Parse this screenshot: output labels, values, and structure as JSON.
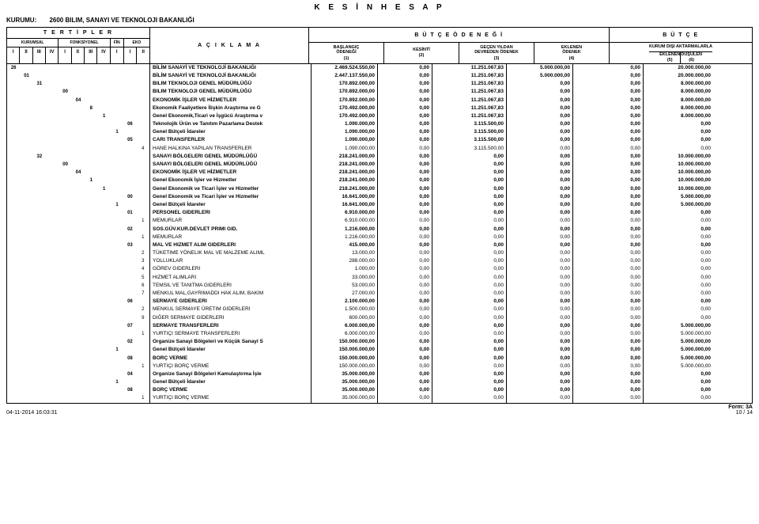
{
  "title": "K E S İ N   H E S A P",
  "kurumu_label": "KURUMU:",
  "kurumu_value": "2600  BILIM, SANAYI VE TEKNOLOJI BAKANLIĞI",
  "tertipler_title": "T E R T İ P L E R",
  "aciklama_title": "A Ç I K L A M A",
  "butce_odenegi_title": "B Ü T Ç E   Ö D E N E Ğ İ",
  "butce_title": "B Ü T Ç E",
  "tert_groups": [
    {
      "title": "KURUMSAL",
      "subs": [
        "I",
        "II",
        "III",
        "IV"
      ]
    },
    {
      "title": "FONKSİYONEL",
      "subs": [
        "I",
        "II",
        "III",
        "IV"
      ]
    },
    {
      "title": "FİN",
      "subs": [
        "I"
      ]
    },
    {
      "title": "EKO",
      "subs": [
        "I",
        "II"
      ]
    }
  ],
  "right_cols": [
    {
      "l1": "BAŞLANGIÇ",
      "l2": "ÖDENEĞİ",
      "n": "(1)"
    },
    {
      "l1": "KESİNTİ",
      "n": "(2)"
    },
    {
      "l1": "GEÇEN YILDAN",
      "l2": "DEVREDEN ÖDENEK",
      "n": "(3)"
    },
    {
      "l1": "EKLENEN",
      "l2": "ÖDENEK",
      "n": "(4)"
    }
  ],
  "kurum_disi": "KURUM DIŞI  AKTARMALARLA",
  "eklenen_col": {
    "l": "EKLENEN",
    "n": "(5)"
  },
  "dusulen_col": {
    "l": "DÜŞÜLEN",
    "n": "(6)"
  },
  "rows": [
    {
      "c": [
        "26",
        "",
        "",
        "",
        "",
        "",
        "",
        "",
        "",
        "",
        ""
      ],
      "b": 1,
      "d": "BİLİM SANAYİ VE TEKNOLOJİ BAKANLIĞI",
      "v": [
        "2.469.524.550,00",
        "0,00",
        "11.251.067,83",
        "5.000.000,00",
        "0,00",
        "20.000.000,00"
      ]
    },
    {
      "c": [
        "",
        "01",
        "",
        "",
        "",
        "",
        "",
        "",
        "",
        "",
        ""
      ],
      "b": 1,
      "d": "BİLİM SANAYİ VE TEKNOLOJİ BAKANLIĞI",
      "v": [
        "2.447.137.550,00",
        "0,00",
        "11.251.067,83",
        "5.000.000,00",
        "0,00",
        "20.000.000,00"
      ]
    },
    {
      "c": [
        "",
        "",
        "31",
        "",
        "",
        "",
        "",
        "",
        "",
        "",
        ""
      ],
      "b": 1,
      "d": "BILIM TEKNOLOJI GENEL MÜDÜRLÜĞÜ",
      "v": [
        "170.892.000,00",
        "0,00",
        "11.251.067,83",
        "0,00",
        "0,00",
        "8.000.000,00"
      ]
    },
    {
      "c": [
        "",
        "",
        "",
        "",
        "00",
        "",
        "",
        "",
        "",
        "",
        ""
      ],
      "b": 1,
      "d": "BILIM TEKNOLOJI GENEL MÜDÜRLÜĞÜ",
      "v": [
        "170.892.000,00",
        "0,00",
        "11.251.067,83",
        "0,00",
        "0,00",
        "8.000.000,00"
      ]
    },
    {
      "c": [
        "",
        "",
        "",
        "",
        "",
        "04",
        "",
        "",
        "",
        "",
        ""
      ],
      "b": 1,
      "d": "EKONOMİK İŞLER VE HİZMETLER",
      "v": [
        "170.892.000,00",
        "0,00",
        "11.251.067,83",
        "0,00",
        "0,00",
        "8.000.000,00"
      ]
    },
    {
      "c": [
        "",
        "",
        "",
        "",
        "",
        "",
        "8",
        "",
        "",
        "",
        ""
      ],
      "b": 1,
      "d": "Ekonomik Faaliyetlere İlişkin Araştırma ve G",
      "v": [
        "170.492.000,00",
        "0,00",
        "11.251.067,83",
        "0,00",
        "0,00",
        "8.000.000,00"
      ]
    },
    {
      "c": [
        "",
        "",
        "",
        "",
        "",
        "",
        "",
        "1",
        "",
        "",
        ""
      ],
      "b": 1,
      "d": "Genel Ekonomik,Ticari ve İşgücü Araştırma v",
      "v": [
        "170.492.000,00",
        "0,00",
        "11.251.067,83",
        "0,00",
        "0,00",
        "8.000.000,00"
      ]
    },
    {
      "c": [
        "",
        "",
        "",
        "",
        "",
        "",
        "",
        "",
        "",
        "06",
        ""
      ],
      "b": 1,
      "d": "Teknolojik Ürün ve Tanıtım Pazarlama Destek",
      "v": [
        "1.090.000,00",
        "0,00",
        "3.115.500,00",
        "0,00",
        "0,00",
        "0,00"
      ]
    },
    {
      "c": [
        "",
        "",
        "",
        "",
        "",
        "",
        "",
        "",
        "1",
        "",
        ""
      ],
      "b": 1,
      "d": "Genel Bütçeli İdareler",
      "v": [
        "1.090.000,00",
        "0,00",
        "3.115.500,00",
        "0,00",
        "0,00",
        "0,00"
      ]
    },
    {
      "c": [
        "",
        "",
        "",
        "",
        "",
        "",
        "",
        "",
        "",
        "05",
        ""
      ],
      "b": 1,
      "d": "CARI TRANSFERLER",
      "v": [
        "1.090.000,00",
        "0,00",
        "3.115.500,00",
        "0,00",
        "0,00",
        "0,00"
      ]
    },
    {
      "c": [
        "",
        "",
        "",
        "",
        "",
        "",
        "",
        "",
        "",
        "",
        "4"
      ],
      "b": 0,
      "d": "HANE HALKINA YAPILAN TRANSFERLER",
      "v": [
        "1.090.000,00",
        "0,00",
        "3.115.500,00",
        "0,00",
        "0,00",
        "0,00"
      ]
    },
    {
      "c": [
        "",
        "",
        "32",
        "",
        "",
        "",
        "",
        "",
        "",
        "",
        ""
      ],
      "b": 1,
      "d": "SANAYI BÖLGELERI GENEL MÜDÜRLÜĞÜ",
      "v": [
        "218.241.000,00",
        "0,00",
        "0,00",
        "0,00",
        "0,00",
        "10.000.000,00"
      ]
    },
    {
      "c": [
        "",
        "",
        "",
        "",
        "00",
        "",
        "",
        "",
        "",
        "",
        ""
      ],
      "b": 1,
      "d": "SANAYI BÖLGELERI GENEL MÜDÜRLÜĞÜ",
      "v": [
        "218.241.000,00",
        "0,00",
        "0,00",
        "0,00",
        "0,00",
        "10.000.000,00"
      ]
    },
    {
      "c": [
        "",
        "",
        "",
        "",
        "",
        "04",
        "",
        "",
        "",
        "",
        ""
      ],
      "b": 1,
      "d": "EKONOMİK İŞLER VE HİZMETLER",
      "v": [
        "218.241.000,00",
        "0,00",
        "0,00",
        "0,00",
        "0,00",
        "10.000.000,00"
      ]
    },
    {
      "c": [
        "",
        "",
        "",
        "",
        "",
        "",
        "1",
        "",
        "",
        "",
        ""
      ],
      "b": 1,
      "d": "Genel Ekonomik İşler ve Hizmetler",
      "v": [
        "218.241.000,00",
        "0,00",
        "0,00",
        "0,00",
        "0,00",
        "10.000.000,00"
      ]
    },
    {
      "c": [
        "",
        "",
        "",
        "",
        "",
        "",
        "",
        "1",
        "",
        "",
        ""
      ],
      "b": 1,
      "d": "Genel Ekonomik ve Ticari  İşler ve Hizmetler",
      "v": [
        "218.241.000,00",
        "0,00",
        "0,00",
        "0,00",
        "0,00",
        "10.000.000,00"
      ]
    },
    {
      "c": [
        "",
        "",
        "",
        "",
        "",
        "",
        "",
        "",
        "",
        "00",
        ""
      ],
      "b": 1,
      "d": "Genel Ekonomik ve Ticari  İşler ve Hizmetler",
      "v": [
        "16.641.000,00",
        "0,00",
        "0,00",
        "0,00",
        "0,00",
        "5.000.000,00"
      ]
    },
    {
      "c": [
        "",
        "",
        "",
        "",
        "",
        "",
        "",
        "",
        "1",
        "",
        ""
      ],
      "b": 1,
      "d": "Genel Bütçeli İdareler",
      "v": [
        "16.641.000,00",
        "0,00",
        "0,00",
        "0,00",
        "0,00",
        "5.000.000,00"
      ]
    },
    {
      "c": [
        "",
        "",
        "",
        "",
        "",
        "",
        "",
        "",
        "",
        "01",
        ""
      ],
      "b": 1,
      "d": "PERSONEL GIDERLERI",
      "v": [
        "6.910.000,00",
        "0,00",
        "0,00",
        "0,00",
        "0,00",
        "0,00"
      ]
    },
    {
      "c": [
        "",
        "",
        "",
        "",
        "",
        "",
        "",
        "",
        "",
        "",
        "1"
      ],
      "b": 0,
      "d": "MEMURLAR",
      "v": [
        "6.910.000,00",
        "0,00",
        "0,00",
        "0,00",
        "0,00",
        "0,00"
      ]
    },
    {
      "c": [
        "",
        "",
        "",
        "",
        "",
        "",
        "",
        "",
        "",
        "02",
        ""
      ],
      "b": 1,
      "d": "SOS.GÜV.KUR.DEVLET PRIMI GID.",
      "v": [
        "1.216.000,00",
        "0,00",
        "0,00",
        "0,00",
        "0,00",
        "0,00"
      ]
    },
    {
      "c": [
        "",
        "",
        "",
        "",
        "",
        "",
        "",
        "",
        "",
        "",
        "1"
      ],
      "b": 0,
      "d": "MEMURLAR",
      "v": [
        "1.216.000,00",
        "0,00",
        "0,00",
        "0,00",
        "0,00",
        "0,00"
      ]
    },
    {
      "c": [
        "",
        "",
        "",
        "",
        "",
        "",
        "",
        "",
        "",
        "03",
        ""
      ],
      "b": 1,
      "d": "MAL VE HIZMET ALIM GIDERLERI",
      "v": [
        "415.000,00",
        "0,00",
        "0,00",
        "0,00",
        "0,00",
        "0,00"
      ]
    },
    {
      "c": [
        "",
        "",
        "",
        "",
        "",
        "",
        "",
        "",
        "",
        "",
        "2"
      ],
      "b": 0,
      "d": "TÜKETIME YÖNELIK MAL VE MALZEME ALIML",
      "v": [
        "13.000,00",
        "0,00",
        "0,00",
        "0,00",
        "0,00",
        "0,00"
      ]
    },
    {
      "c": [
        "",
        "",
        "",
        "",
        "",
        "",
        "",
        "",
        "",
        "",
        "3"
      ],
      "b": 0,
      "d": "YOLLUKLAR",
      "v": [
        "288.000,00",
        "0,00",
        "0,00",
        "0,00",
        "0,00",
        "0,00"
      ]
    },
    {
      "c": [
        "",
        "",
        "",
        "",
        "",
        "",
        "",
        "",
        "",
        "",
        "4"
      ],
      "b": 0,
      "d": "GÖREV GIDERLERI",
      "v": [
        "1.000,00",
        "0,00",
        "0,00",
        "0,00",
        "0,00",
        "0,00"
      ]
    },
    {
      "c": [
        "",
        "",
        "",
        "",
        "",
        "",
        "",
        "",
        "",
        "",
        "5"
      ],
      "b": 0,
      "d": "HIZMET ALIMLARI",
      "v": [
        "33.000,00",
        "0,00",
        "0,00",
        "0,00",
        "0,00",
        "0,00"
      ]
    },
    {
      "c": [
        "",
        "",
        "",
        "",
        "",
        "",
        "",
        "",
        "",
        "",
        "6"
      ],
      "b": 0,
      "d": "TEMSIL VE TANITMA GIDERLERI",
      "v": [
        "53.000,00",
        "0,00",
        "0,00",
        "0,00",
        "0,00",
        "0,00"
      ]
    },
    {
      "c": [
        "",
        "",
        "",
        "",
        "",
        "",
        "",
        "",
        "",
        "",
        "7"
      ],
      "b": 0,
      "d": "MENKUL MAL,GAYRIMADDI HAK ALIM, BAKIM",
      "v": [
        "27.000,00",
        "0,00",
        "0,00",
        "0,00",
        "0,00",
        "0,00"
      ]
    },
    {
      "c": [
        "",
        "",
        "",
        "",
        "",
        "",
        "",
        "",
        "",
        "06",
        ""
      ],
      "b": 1,
      "d": "SERMAYE GIDERLERI",
      "v": [
        "2.100.000,00",
        "0,00",
        "0,00",
        "0,00",
        "0,00",
        "0,00"
      ]
    },
    {
      "c": [
        "",
        "",
        "",
        "",
        "",
        "",
        "",
        "",
        "",
        "",
        "2"
      ],
      "b": 0,
      "d": "MENKUL SERMAYE ÜRETIM GIDERLERI",
      "v": [
        "1.500.000,00",
        "0,00",
        "0,00",
        "0,00",
        "0,00",
        "0,00"
      ]
    },
    {
      "c": [
        "",
        "",
        "",
        "",
        "",
        "",
        "",
        "",
        "",
        "",
        "9"
      ],
      "b": 0,
      "d": "DIĞER SERMAYE GIDERLERI",
      "v": [
        "600.000,00",
        "0,00",
        "0,00",
        "0,00",
        "0,00",
        "0,00"
      ]
    },
    {
      "c": [
        "",
        "",
        "",
        "",
        "",
        "",
        "",
        "",
        "",
        "07",
        ""
      ],
      "b": 1,
      "d": "SERMAYE TRANSFERLERI",
      "v": [
        "6.000.000,00",
        "0,00",
        "0,00",
        "0,00",
        "0,00",
        "5.000.000,00"
      ]
    },
    {
      "c": [
        "",
        "",
        "",
        "",
        "",
        "",
        "",
        "",
        "",
        "",
        "1"
      ],
      "b": 0,
      "d": "YURTIÇI SERMAYE TRANSFERLERI",
      "v": [
        "6.000.000,00",
        "0,00",
        "0,00",
        "0,00",
        "0,00",
        "5.000.000,00"
      ]
    },
    {
      "c": [
        "",
        "",
        "",
        "",
        "",
        "",
        "",
        "",
        "",
        "02",
        ""
      ],
      "b": 1,
      "d": "Organize Sanayi Bölgeleri  ve Küçük Sanayi S",
      "v": [
        "150.000.000,00",
        "0,00",
        "0,00",
        "0,00",
        "0,00",
        "5.000.000,00"
      ]
    },
    {
      "c": [
        "",
        "",
        "",
        "",
        "",
        "",
        "",
        "",
        "1",
        "",
        ""
      ],
      "b": 1,
      "d": "Genel Bütçeli İdareler",
      "v": [
        "150.000.000,00",
        "0,00",
        "0,00",
        "0,00",
        "0,00",
        "5.000.000,00"
      ]
    },
    {
      "c": [
        "",
        "",
        "",
        "",
        "",
        "",
        "",
        "",
        "",
        "08",
        ""
      ],
      "b": 1,
      "d": "BORÇ VERME",
      "v": [
        "150.000.000,00",
        "0,00",
        "0,00",
        "0,00",
        "0,00",
        "5.000.000,00"
      ]
    },
    {
      "c": [
        "",
        "",
        "",
        "",
        "",
        "",
        "",
        "",
        "",
        "",
        "1"
      ],
      "b": 0,
      "d": "YURTIÇI BORÇ VERME",
      "v": [
        "150.000.000,00",
        "0,00",
        "0,00",
        "0,00",
        "0,00",
        "5.000.000,00"
      ]
    },
    {
      "c": [
        "",
        "",
        "",
        "",
        "",
        "",
        "",
        "",
        "",
        "04",
        ""
      ],
      "b": 1,
      "d": "Organize Sanayi Bölgeleri Kamulaştırma  İşle",
      "v": [
        "35.000.000,00",
        "0,00",
        "0,00",
        "0,00",
        "0,00",
        "0,00"
      ]
    },
    {
      "c": [
        "",
        "",
        "",
        "",
        "",
        "",
        "",
        "",
        "1",
        "",
        ""
      ],
      "b": 1,
      "d": "Genel Bütçeli İdareler",
      "v": [
        "35.000.000,00",
        "0,00",
        "0,00",
        "0,00",
        "0,00",
        "0,00"
      ]
    },
    {
      "c": [
        "",
        "",
        "",
        "",
        "",
        "",
        "",
        "",
        "",
        "08",
        ""
      ],
      "b": 1,
      "d": "BORÇ VERME",
      "v": [
        "35.000.000,00",
        "0,00",
        "0,00",
        "0,00",
        "0,00",
        "0,00"
      ]
    },
    {
      "c": [
        "",
        "",
        "",
        "",
        "",
        "",
        "",
        "",
        "",
        "",
        "1"
      ],
      "b": 0,
      "d": "YURTIÇI BORÇ VERME",
      "v": [
        "35.000.000,00",
        "0,00",
        "0,00",
        "0,00",
        "0,00",
        "0,00"
      ]
    }
  ],
  "footer": {
    "form": "Form: 3A",
    "ts": "04-11-2014 16:03:31",
    "page": "10 /  14"
  }
}
